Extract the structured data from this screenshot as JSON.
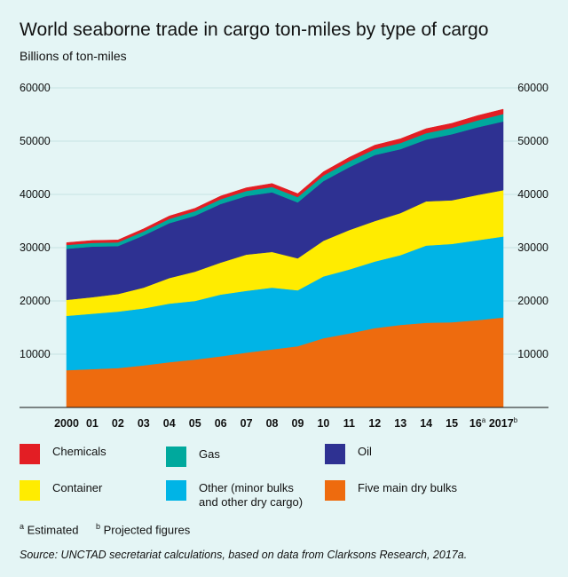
{
  "chart_data": {
    "type": "area",
    "stacked": true,
    "title": "World seaborne trade in cargo ton-miles by type of cargo",
    "ylabel": "Billions of ton-miles",
    "ylim": [
      0,
      60000
    ],
    "yticks": [
      10000,
      20000,
      30000,
      40000,
      50000,
      60000
    ],
    "categories": [
      "2000",
      "01",
      "02",
      "03",
      "04",
      "05",
      "06",
      "07",
      "08",
      "09",
      "10",
      "11",
      "12",
      "13",
      "14",
      "15",
      "16",
      "2017"
    ],
    "category_superscripts": [
      "",
      "",
      "",
      "",
      "",
      "",
      "",
      "",
      "",
      "",
      "",
      "",
      "",
      "",
      "",
      "",
      "a",
      "b"
    ],
    "series": [
      {
        "name": "Five main dry bulks",
        "color": "#ee6b0e",
        "values": [
          7000,
          7200,
          7400,
          7900,
          8500,
          9000,
          9600,
          10300,
          10900,
          11500,
          13000,
          13900,
          14900,
          15500,
          15900,
          16000,
          16400,
          16900
        ]
      },
      {
        "name": "Other (minor bulks and other dry cargo)",
        "color": "#00b4e6",
        "values": [
          10200,
          10400,
          10600,
          10700,
          11000,
          11000,
          11600,
          11600,
          11600,
          10500,
          11600,
          12000,
          12500,
          13100,
          14500,
          14700,
          15000,
          15200
        ]
      },
      {
        "name": "Container",
        "color": "#ffec00",
        "values": [
          3000,
          3100,
          3300,
          3900,
          4800,
          5500,
          6000,
          6800,
          6700,
          6000,
          6700,
          7400,
          7600,
          7900,
          8300,
          8200,
          8500,
          8700
        ]
      },
      {
        "name": "Oil",
        "color": "#2e3192",
        "values": [
          9600,
          9500,
          9000,
          9800,
          10300,
          10500,
          11000,
          11000,
          11200,
          10500,
          11200,
          11800,
          12400,
          12000,
          11600,
          12400,
          12700,
          12900
        ]
      },
      {
        "name": "Gas",
        "color": "#00a99d",
        "values": [
          700,
          700,
          700,
          750,
          800,
          850,
          900,
          950,
          1000,
          1000,
          1050,
          1100,
          1100,
          1150,
          1200,
          1200,
          1300,
          1400
        ]
      },
      {
        "name": "Chemicals",
        "color": "#e31e24",
        "values": [
          450,
          450,
          450,
          500,
          550,
          550,
          600,
          600,
          650,
          650,
          700,
          750,
          750,
          800,
          850,
          850,
          900,
          900
        ]
      }
    ],
    "legend_order": [
      "Chemicals",
      "Gas",
      "Oil",
      "Container",
      "Other (minor bulks and other dry cargo)",
      "Five main dry bulks"
    ],
    "legend_position": "bottom"
  },
  "legend_lines": {
    "other_line1": "Other (minor bulks",
    "other_line2": "and other dry cargo)"
  },
  "footnotes": {
    "a_mark": "a",
    "a_text": "Estimated",
    "b_mark": "b",
    "b_text": "Projected figures"
  },
  "source": "Source: UNCTAD secretariat calculations, based on data from Clarksons Research, 2017a."
}
